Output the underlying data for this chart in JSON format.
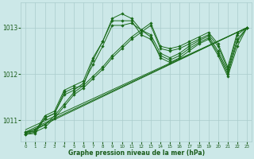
{
  "bg_color": "#cce8e8",
  "grid_color": "#aacccc",
  "line_color": "#1a6b1a",
  "text_color": "#1a5c1a",
  "xlabel": "Graphe pression niveau de la mer (hPa)",
  "ylim": [
    1010.55,
    1013.55
  ],
  "xlim": [
    -0.5,
    23.5
  ],
  "yticks": [
    1011,
    1012,
    1013
  ],
  "xticks": [
    0,
    1,
    2,
    3,
    4,
    5,
    6,
    7,
    8,
    9,
    10,
    11,
    12,
    13,
    14,
    15,
    16,
    17,
    18,
    19,
    20,
    21,
    22,
    23
  ],
  "series": [
    [
      1010.7,
      1010.75,
      1010.85,
      1011.05,
      1011.3,
      1011.55,
      1011.7,
      1011.9,
      1012.1,
      1012.35,
      1012.55,
      1012.75,
      1012.9,
      1013.05,
      1012.55,
      1012.5,
      1012.55,
      1012.65,
      1012.75,
      1012.85,
      1012.6,
      1012.1,
      1012.85,
      1013.0
    ],
    [
      1010.75,
      1010.8,
      1010.9,
      1011.1,
      1011.35,
      1011.6,
      1011.75,
      1011.95,
      1012.15,
      1012.4,
      1012.6,
      1012.8,
      1012.95,
      1013.1,
      1012.6,
      1012.55,
      1012.6,
      1012.7,
      1012.8,
      1012.9,
      1012.65,
      1012.15,
      1012.9,
      1013.0
    ],
    [
      1010.72,
      1010.77,
      1011.05,
      1011.15,
      1011.55,
      1011.65,
      1011.8,
      1012.2,
      1012.6,
      1013.05,
      1013.05,
      1013.1,
      1012.95,
      1012.85,
      1012.45,
      1012.35,
      1012.45,
      1012.6,
      1012.72,
      1012.82,
      1012.5,
      1012.05,
      1012.75,
      1013.0
    ],
    [
      1010.75,
      1010.77,
      1011.1,
      1011.2,
      1011.65,
      1011.75,
      1011.85,
      1012.35,
      1012.7,
      1013.15,
      1013.15,
      1013.15,
      1012.85,
      1012.75,
      1012.4,
      1012.3,
      1012.4,
      1012.55,
      1012.68,
      1012.78,
      1012.45,
      1012.0,
      1012.7,
      1013.0
    ],
    [
      1010.7,
      1010.72,
      1011.05,
      1011.15,
      1011.6,
      1011.7,
      1011.75,
      1012.3,
      1012.7,
      1013.2,
      1013.3,
      1013.2,
      1012.95,
      1012.8,
      1012.35,
      1012.25,
      1012.35,
      1012.5,
      1012.65,
      1012.75,
      1012.4,
      1011.95,
      1012.6,
      1013.0
    ]
  ],
  "linear_series": [
    {
      "x0": 0,
      "x1": 23,
      "y0": 1010.72,
      "y1": 1013.0
    },
    {
      "x0": 0,
      "x1": 23,
      "y0": 1010.75,
      "y1": 1013.0
    },
    {
      "x0": 0,
      "x1": 23,
      "y0": 1010.8,
      "y1": 1013.0
    }
  ]
}
